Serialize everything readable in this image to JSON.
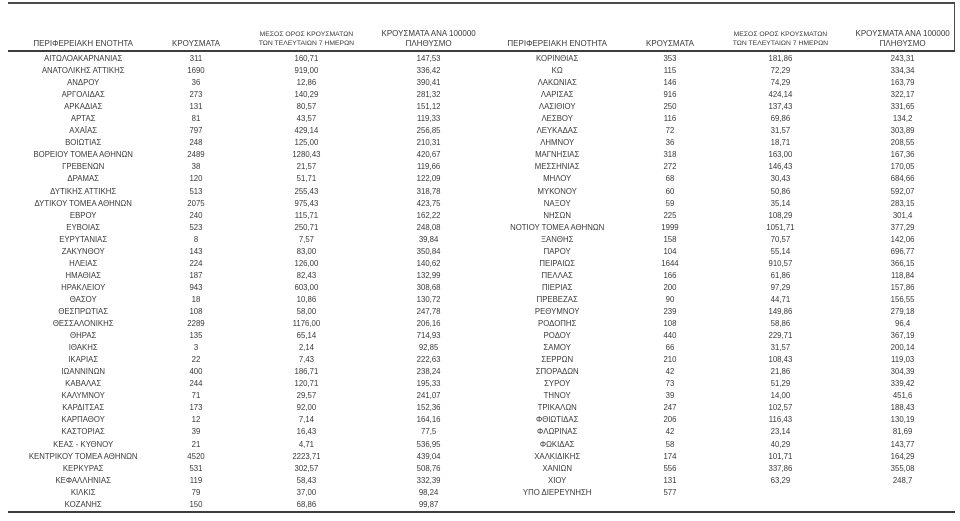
{
  "colors": {
    "text": "#3a3a3a",
    "rule": "#4a4a4a",
    "background": "#ffffff"
  },
  "header": {
    "col_region": "ΠΕΡΙΦΕΡΕΙΑΚΗ ΕΝΟΤΗΤΑ",
    "col_cases": "ΚΡΟΥΣΜΑΤΑ",
    "col_avg7_line1": "ΜΕΣΟΣ ΟΡΟΣ ΚΡΟΥΣΜΑΤΩΝ",
    "col_avg7_line2": "ΤΩΝ ΤΕΛΕΥΤΑΙΩΝ 7 ΗΜΕΡΩΝ",
    "col_per100k_line1": "ΚΡΟΥΣΜΑΤΑ ΑΝΑ 100000",
    "col_per100k_line2": "ΠΛΗΘΥΣΜΟ"
  },
  "left_table": {
    "rows": [
      [
        "ΑΙΤΩΛΟΑΚΑΡΝΑΝΙΑΣ",
        "311",
        "160,71",
        "147,53"
      ],
      [
        "ΑΝΑΤΟΛΙΚΗΣ ΑΤΤΙΚΗΣ",
        "1690",
        "919,00",
        "336,42"
      ],
      [
        "ΑΝΔΡΟΥ",
        "36",
        "12,86",
        "390,41"
      ],
      [
        "ΑΡΓΟΛΙΔΑΣ",
        "273",
        "140,29",
        "281,32"
      ],
      [
        "ΑΡΚΑΔΙΑΣ",
        "131",
        "80,57",
        "151,12"
      ],
      [
        "ΑΡΤΑΣ",
        "81",
        "43,57",
        "119,33"
      ],
      [
        "ΑΧΑΪΑΣ",
        "797",
        "429,14",
        "256,85"
      ],
      [
        "ΒΟΙΩΤΙΑΣ",
        "248",
        "125,00",
        "210,31"
      ],
      [
        "ΒΟΡΕΙΟΥ ΤΟΜΕΑ ΑΘΗΝΩΝ",
        "2489",
        "1280,43",
        "420,67"
      ],
      [
        "ΓΡΕΒΕΝΩΝ",
        "38",
        "21,57",
        "119,66"
      ],
      [
        "ΔΡΑΜΑΣ",
        "120",
        "51,71",
        "122,09"
      ],
      [
        "ΔΥΤΙΚΗΣ ΑΤΤΙΚΗΣ",
        "513",
        "255,43",
        "318,78"
      ],
      [
        "ΔΥΤΙΚΟΥ ΤΟΜΕΑ ΑΘΗΝΩΝ",
        "2075",
        "975,43",
        "423,75"
      ],
      [
        "ΕΒΡΟΥ",
        "240",
        "115,71",
        "162,22"
      ],
      [
        "ΕΥΒΟΙΑΣ",
        "523",
        "250,71",
        "248,08"
      ],
      [
        "ΕΥΡΥΤΑΝΙΑΣ",
        "8",
        "7,57",
        "39,84"
      ],
      [
        "ΖΑΚΥΝΘΟΥ",
        "143",
        "83,00",
        "350,84"
      ],
      [
        "ΗΛΕΙΑΣ",
        "224",
        "126,00",
        "140,62"
      ],
      [
        "ΗΜΑΘΙΑΣ",
        "187",
        "82,43",
        "132,99"
      ],
      [
        "ΗΡΑΚΛΕΙΟΥ",
        "943",
        "603,00",
        "308,68"
      ],
      [
        "ΘΑΣΟΥ",
        "18",
        "10,86",
        "130,72"
      ],
      [
        "ΘΕΣΠΡΩΤΙΑΣ",
        "108",
        "58,00",
        "247,78"
      ],
      [
        "ΘΕΣΣΑΛΟΝΙΚΗΣ",
        "2289",
        "1176,00",
        "206,16"
      ],
      [
        "ΘΗΡΑΣ",
        "135",
        "65,14",
        "714,93"
      ],
      [
        "ΙΘΑΚΗΣ",
        "3",
        "2,14",
        "92,85"
      ],
      [
        "ΙΚΑΡΙΑΣ",
        "22",
        "7,43",
        "222,63"
      ],
      [
        "ΙΩΑΝΝΙΝΩΝ",
        "400",
        "186,71",
        "238,24"
      ],
      [
        "ΚΑΒΑΛΑΣ",
        "244",
        "120,71",
        "195,33"
      ],
      [
        "ΚΑΛΥΜΝΟΥ",
        "71",
        "29,57",
        "241,07"
      ],
      [
        "ΚΑΡΔΙΤΣΑΣ",
        "173",
        "92,00",
        "152,36"
      ],
      [
        "ΚΑΡΠΑΘΟΥ",
        "12",
        "7,14",
        "164,16"
      ],
      [
        "ΚΑΣΤΟΡΙΑΣ",
        "39",
        "16,43",
        "77,5"
      ],
      [
        "ΚΕΑΣ - ΚΥΘΝΟΥ",
        "21",
        "4,71",
        "536,95"
      ],
      [
        "ΚΕΝΤΡΙΚΟΥ ΤΟΜΕΑ ΑΘΗΝΩΝ",
        "4520",
        "2223,71",
        "439,04"
      ],
      [
        "ΚΕΡΚΥΡΑΣ",
        "531",
        "302,57",
        "508,76"
      ],
      [
        "ΚΕΦΑΛΛΗΝΙΑΣ",
        "119",
        "58,43",
        "332,39"
      ],
      [
        "ΚΙΛΚΙΣ",
        "79",
        "37,00",
        "98,24"
      ],
      [
        "ΚΟΖΑΝΗΣ",
        "150",
        "68,86",
        "99,87"
      ]
    ]
  },
  "right_table": {
    "rows": [
      [
        "ΚΟΡΙΝΘΙΑΣ",
        "353",
        "181,86",
        "243,31"
      ],
      [
        "ΚΩ",
        "115",
        "72,29",
        "334,34"
      ],
      [
        "ΛΑΚΩΝΙΑΣ",
        "146",
        "74,29",
        "163,79"
      ],
      [
        "ΛΑΡΙΣΑΣ",
        "916",
        "424,14",
        "322,17"
      ],
      [
        "ΛΑΣΙΘΙΟΥ",
        "250",
        "137,43",
        "331,65"
      ],
      [
        "ΛΕΣΒΟΥ",
        "116",
        "69,86",
        "134,2"
      ],
      [
        "ΛΕΥΚΑΔΑΣ",
        "72",
        "31,57",
        "303,89"
      ],
      [
        "ΛΗΜΝΟΥ",
        "36",
        "18,71",
        "208,55"
      ],
      [
        "ΜΑΓΝΗΣΙΑΣ",
        "318",
        "163,00",
        "167,36"
      ],
      [
        "ΜΕΣΣΗΝΙΑΣ",
        "272",
        "146,43",
        "170,05"
      ],
      [
        "ΜΗΛΟΥ",
        "68",
        "30,43",
        "684,66"
      ],
      [
        "ΜΥΚΟΝΟΥ",
        "60",
        "50,86",
        "592,07"
      ],
      [
        "ΝΑΞΟΥ",
        "59",
        "35,14",
        "283,15"
      ],
      [
        "ΝΗΣΩΝ",
        "225",
        "108,29",
        "301,4"
      ],
      [
        "ΝΟΤΙΟΥ ΤΟΜΕΑ ΑΘΗΝΩΝ",
        "1999",
        "1051,71",
        "377,29"
      ],
      [
        "ΞΑΝΘΗΣ",
        "158",
        "70,57",
        "142,06"
      ],
      [
        "ΠΑΡΟΥ",
        "104",
        "55,14",
        "696,77"
      ],
      [
        "ΠΕΙΡΑΙΩΣ",
        "1644",
        "910,57",
        "366,15"
      ],
      [
        "ΠΕΛΛΑΣ",
        "166",
        "61,86",
        "118,84"
      ],
      [
        "ΠΙΕΡΙΑΣ",
        "200",
        "97,29",
        "157,86"
      ],
      [
        "ΠΡΕΒΕΖΑΣ",
        "90",
        "44,71",
        "156,55"
      ],
      [
        "ΡΕΘΥΜΝΟΥ",
        "239",
        "149,86",
        "279,18"
      ],
      [
        "ΡΟΔΟΠΗΣ",
        "108",
        "58,86",
        "96,4"
      ],
      [
        "ΡΟΔΟΥ",
        "440",
        "229,71",
        "367,19"
      ],
      [
        "ΣΑΜΟΥ",
        "66",
        "31,57",
        "200,14"
      ],
      [
        "ΣΕΡΡΩΝ",
        "210",
        "108,43",
        "119,03"
      ],
      [
        "ΣΠΟΡΑΔΩΝ",
        "42",
        "21,86",
        "304,39"
      ],
      [
        "ΣΥΡΟΥ",
        "73",
        "51,29",
        "339,42"
      ],
      [
        "ΤΗΝΟΥ",
        "39",
        "14,00",
        "451,6"
      ],
      [
        "ΤΡΙΚΑΛΩΝ",
        "247",
        "102,57",
        "188,43"
      ],
      [
        "ΦΘΙΩΤΙΔΑΣ",
        "206",
        "116,43",
        "130,19"
      ],
      [
        "ΦΛΩΡΙΝΑΣ",
        "42",
        "23,14",
        "81,69"
      ],
      [
        "ΦΩΚΙΔΑΣ",
        "58",
        "40,29",
        "143,77"
      ],
      [
        "ΧΑΛΚΙΔΙΚΗΣ",
        "174",
        "101,71",
        "164,29"
      ],
      [
        "ΧΑΝΙΩΝ",
        "556",
        "337,86",
        "355,08"
      ],
      [
        "ΧΙΟΥ",
        "131",
        "63,29",
        "248,7"
      ],
      [
        "ΥΠΟ ΔΙΕΡΕΥΝΗΣΗ",
        "577",
        "",
        ""
      ]
    ]
  }
}
